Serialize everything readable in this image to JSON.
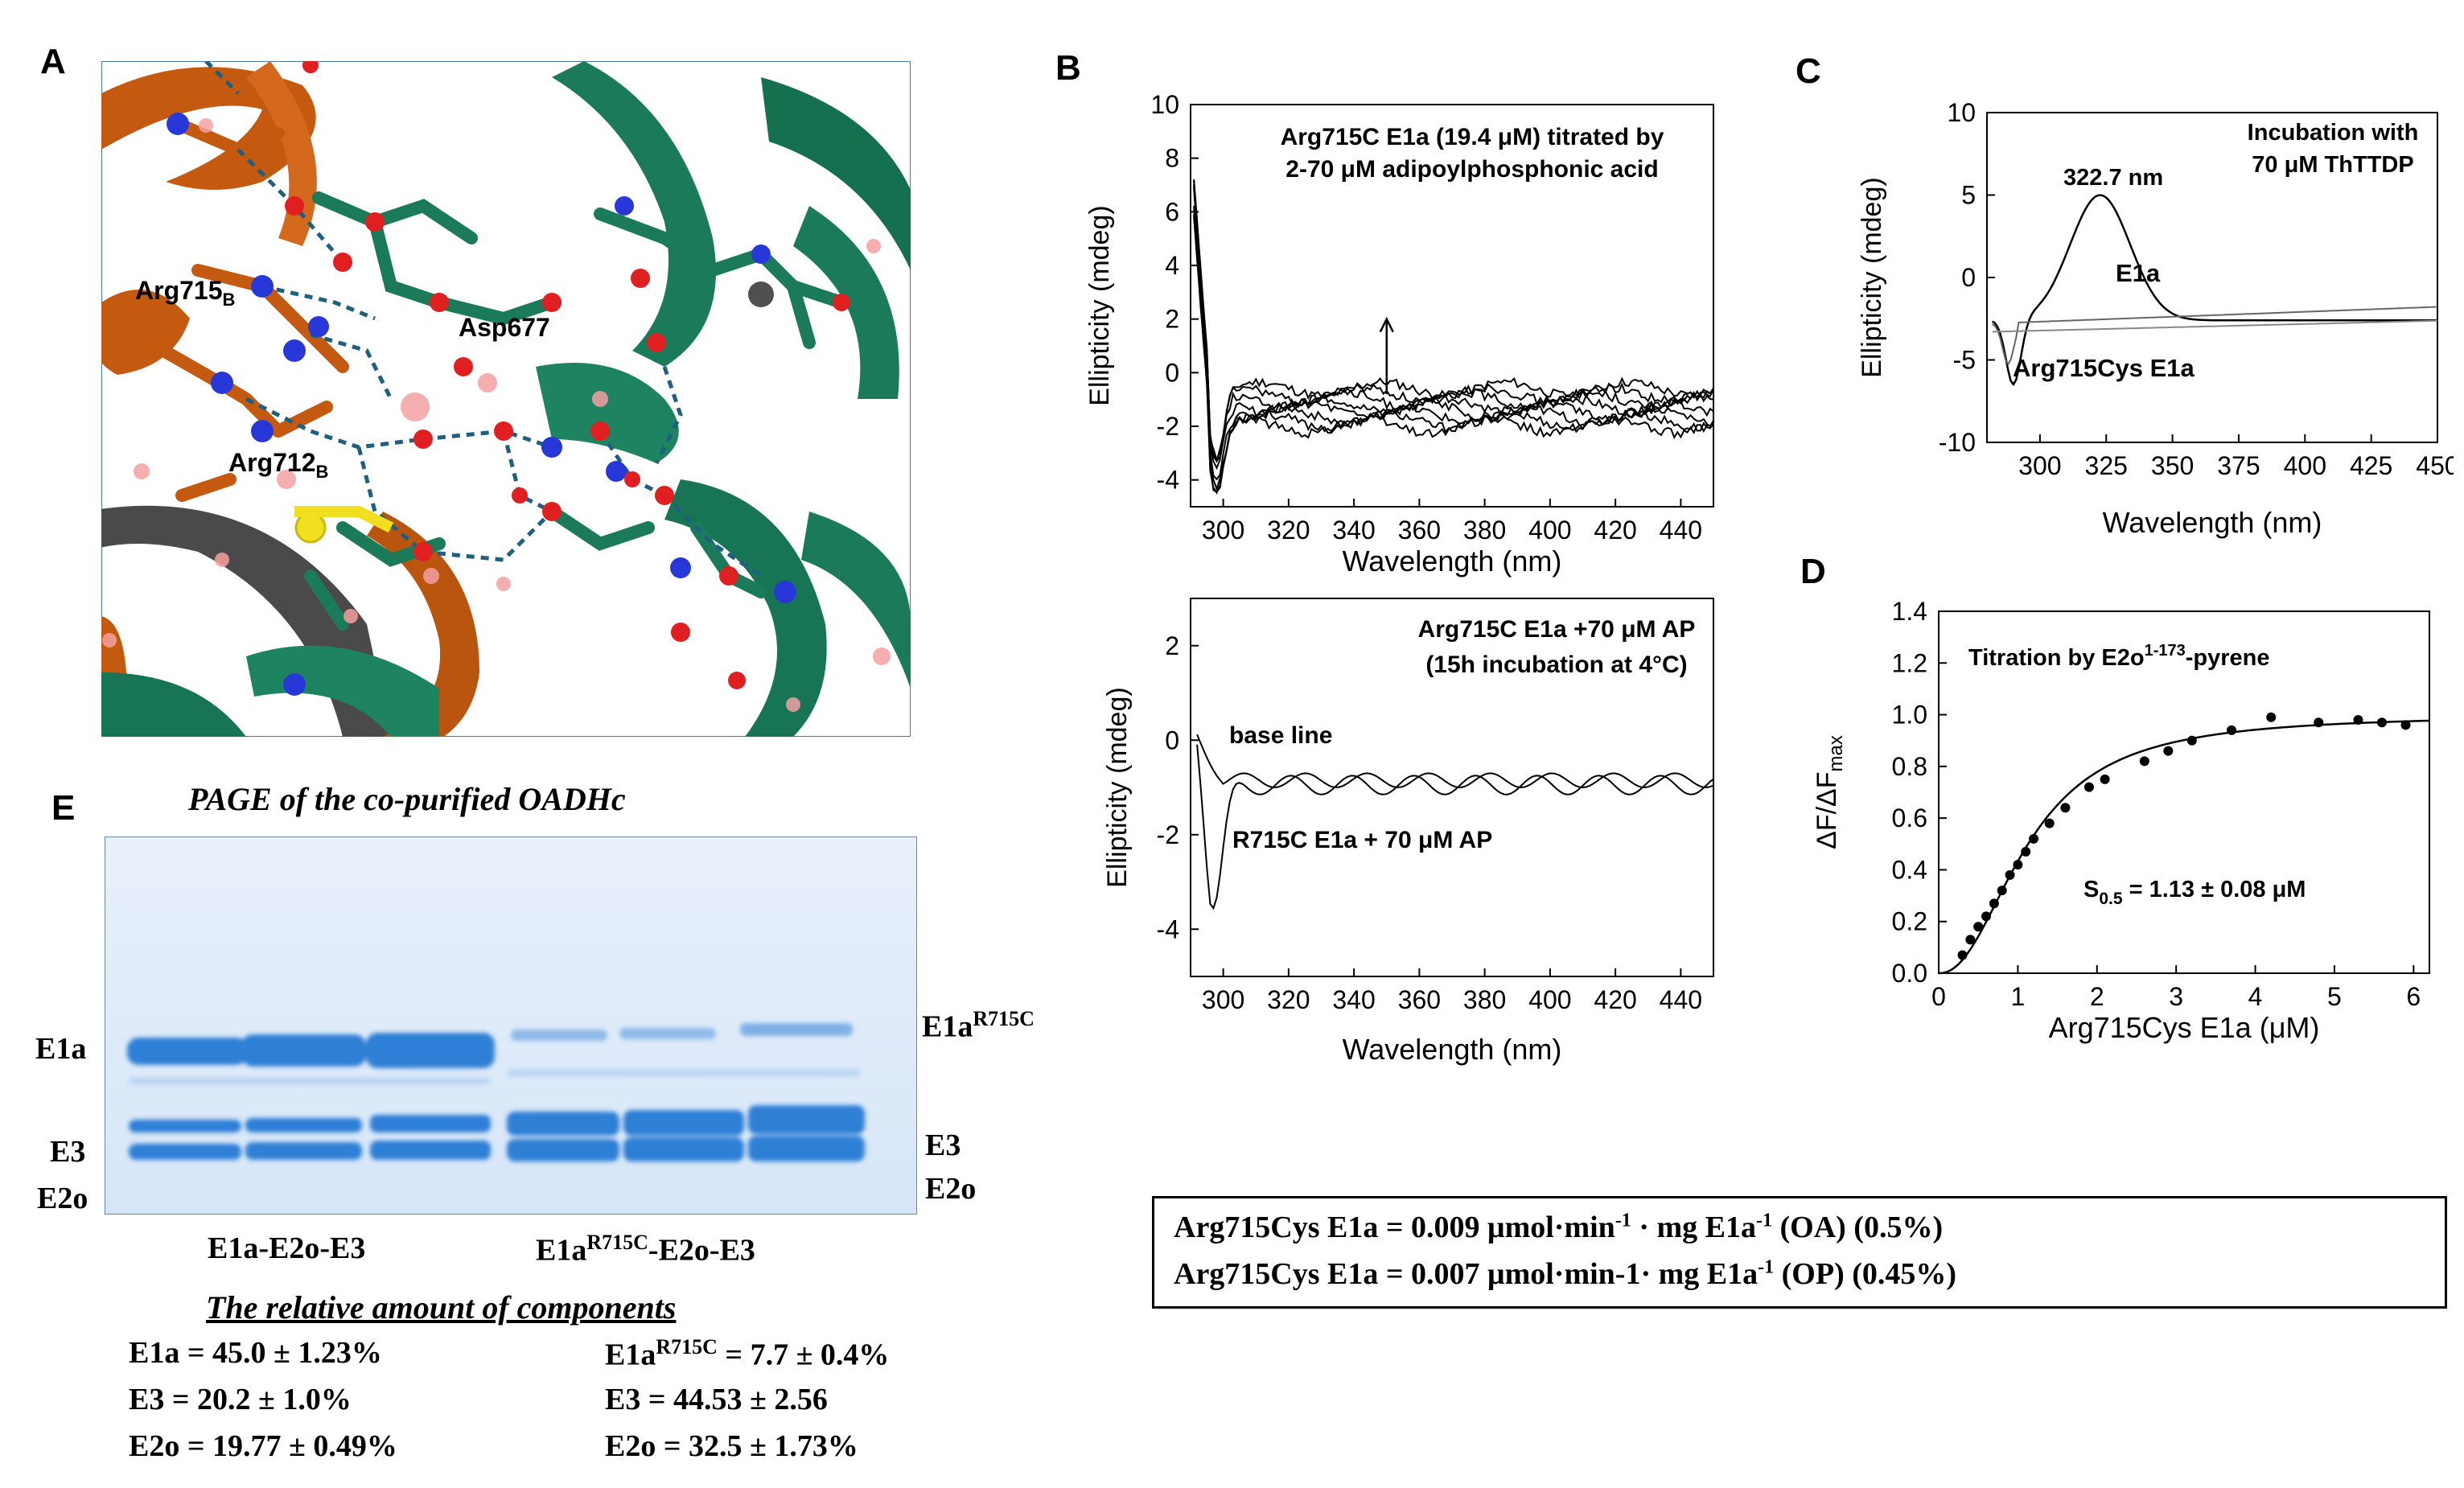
{
  "panels": {
    "a": "A",
    "b": "B",
    "c": "C",
    "d": "D",
    "e": "E"
  },
  "panel_a": {
    "labels": {
      "arg715": "Arg715",
      "arg715_sub": "B",
      "asp677": "Asp677",
      "arg712": "Arg712",
      "arg712_sub": "B"
    },
    "colors": {
      "chain_b": "#c45a10",
      "chain_a": "#1a7a5a",
      "oxygen": "#e02020",
      "nitrogen": "#2838d8",
      "sulfur": "#f0e020",
      "gray": "#505050"
    }
  },
  "chart_data": [
    {
      "id": "B-top",
      "type": "line",
      "title": "Arg715C E1a (19.4 μM) titrated by",
      "subtitle": "2-70 μM  adipoylphosphonic acid",
      "xlabel": "Wavelength (nm)",
      "ylabel": "Ellipticity (mdeg)",
      "xlim": [
        290,
        450
      ],
      "ylim": [
        -5,
        10
      ],
      "xticks": [
        "300",
        "320",
        "340",
        "360",
        "380",
        "400",
        "420",
        "440"
      ],
      "yticks": [
        "10",
        "8",
        "6",
        "4",
        "2",
        "0",
        "-2",
        "-4"
      ],
      "series_count": 8,
      "annotation": "arrow up at 350 nm"
    },
    {
      "id": "B-bottom",
      "type": "line",
      "title": "Arg715C E1a +70 μM AP",
      "subtitle": "(15h incubation at 4°C)",
      "xlabel": "Wavelength (nm)",
      "ylabel": "Ellipticity (mdeg)",
      "xlim": [
        290,
        450
      ],
      "ylim": [
        -5,
        3
      ],
      "xticks": [
        "300",
        "320",
        "340",
        "360",
        "380",
        "400",
        "420",
        "440"
      ],
      "yticks": [
        "2",
        "0",
        "-2",
        "-4"
      ],
      "series": [
        {
          "name": "base line"
        },
        {
          "name": "R715C E1a + 70 μM AP"
        }
      ]
    },
    {
      "id": "C",
      "type": "line",
      "title": "Incubation with",
      "subtitle": "70 μM ThTTDP",
      "xlabel": "Wavelength (nm)",
      "ylabel": "Ellipticity (mdeg)",
      "xlim": [
        280,
        450
      ],
      "ylim": [
        -10,
        10
      ],
      "xticks": [
        "300",
        "325",
        "350",
        "375",
        "400",
        "425",
        "450"
      ],
      "yticks": [
        "10",
        "5",
        "0",
        "-5",
        "-10"
      ],
      "peak_label": "322.7 nm",
      "series": [
        {
          "name": "E1a"
        },
        {
          "name": "Arg715Cys E1a"
        }
      ]
    },
    {
      "id": "D",
      "type": "scatter",
      "title": "Titration  by E2o",
      "title_sup": "1-173",
      "title_suffix": "-pyrene",
      "xlabel": "Arg715Cys E1a (μM)",
      "ylabel": "ΔF/ΔF",
      "ylabel_sub": "max",
      "xlim": [
        0,
        6.2
      ],
      "ylim": [
        0,
        1.4
      ],
      "xticks": [
        "0",
        "1",
        "2",
        "3",
        "4",
        "5",
        "6"
      ],
      "yticks": [
        "1.4",
        "1.2",
        "1.0",
        "0.8",
        "0.6",
        "0.4",
        "0.2",
        "0.0"
      ],
      "x": [
        0.3,
        0.4,
        0.5,
        0.6,
        0.7,
        0.8,
        0.9,
        1.0,
        1.1,
        1.2,
        1.4,
        1.6,
        1.9,
        2.1,
        2.6,
        2.9,
        3.2,
        3.7,
        4.2,
        4.8,
        5.3,
        5.6,
        5.9
      ],
      "y": [
        0.07,
        0.13,
        0.18,
        0.22,
        0.27,
        0.32,
        0.38,
        0.42,
        0.47,
        0.52,
        0.58,
        0.64,
        0.72,
        0.75,
        0.82,
        0.86,
        0.9,
        0.94,
        0.99,
        0.97,
        0.98,
        0.97,
        0.96
      ],
      "s05_label": "S",
      "s05_sub": "0.5",
      "s05_value": " = 1.13 ± 0.08 μM"
    }
  ],
  "panel_e": {
    "title": "PAGE of the co-purified OADHc",
    "left_labels": {
      "e1a": "E1a",
      "e3": "E3",
      "e2o": "E2o"
    },
    "right_labels": {
      "e1a": "E1a",
      "e1a_sup": "R715C",
      "e3": "E3",
      "e2o": "E2o"
    },
    "lane_group_1": "E1a-E2o-E3",
    "lane_group_2_a": "E1a",
    "lane_group_2_sup": "R715C",
    "lane_group_2_b": "-E2o-E3",
    "gel_color": "#e8f0fa",
    "band_color": "#2e7fd6",
    "table_title": "The relative amount of components",
    "left": {
      "r1": "E1a = 45.0 ± 1.23%",
      "r2": "E3  = 20.2 ± 1.0%",
      "r3": "E2o = 19.77 ± 0.49%"
    },
    "right": {
      "r1a": "E1a",
      "r1sup": "R715C",
      "r1b": " = 7.7 ±  0.4%",
      "r2": "E3 = 44.53 ± 2.56",
      "r3": "E2o = 32.5 ± 1.73%"
    }
  },
  "activity_box": {
    "line1_a": "Arg715Cys E1a = 0.009 μmol·min",
    "line1_sup1": "-1",
    "line1_b": " · mg E1a",
    "line1_sup2": "-1",
    "line1_c": " (OA) (0.5%)",
    "line2_a": "Arg715Cys E1a  = 0.007 μmol·min-1· mg E1a",
    "line2_sup": "-1",
    "line2_c": " (OP) (0.45%)"
  }
}
